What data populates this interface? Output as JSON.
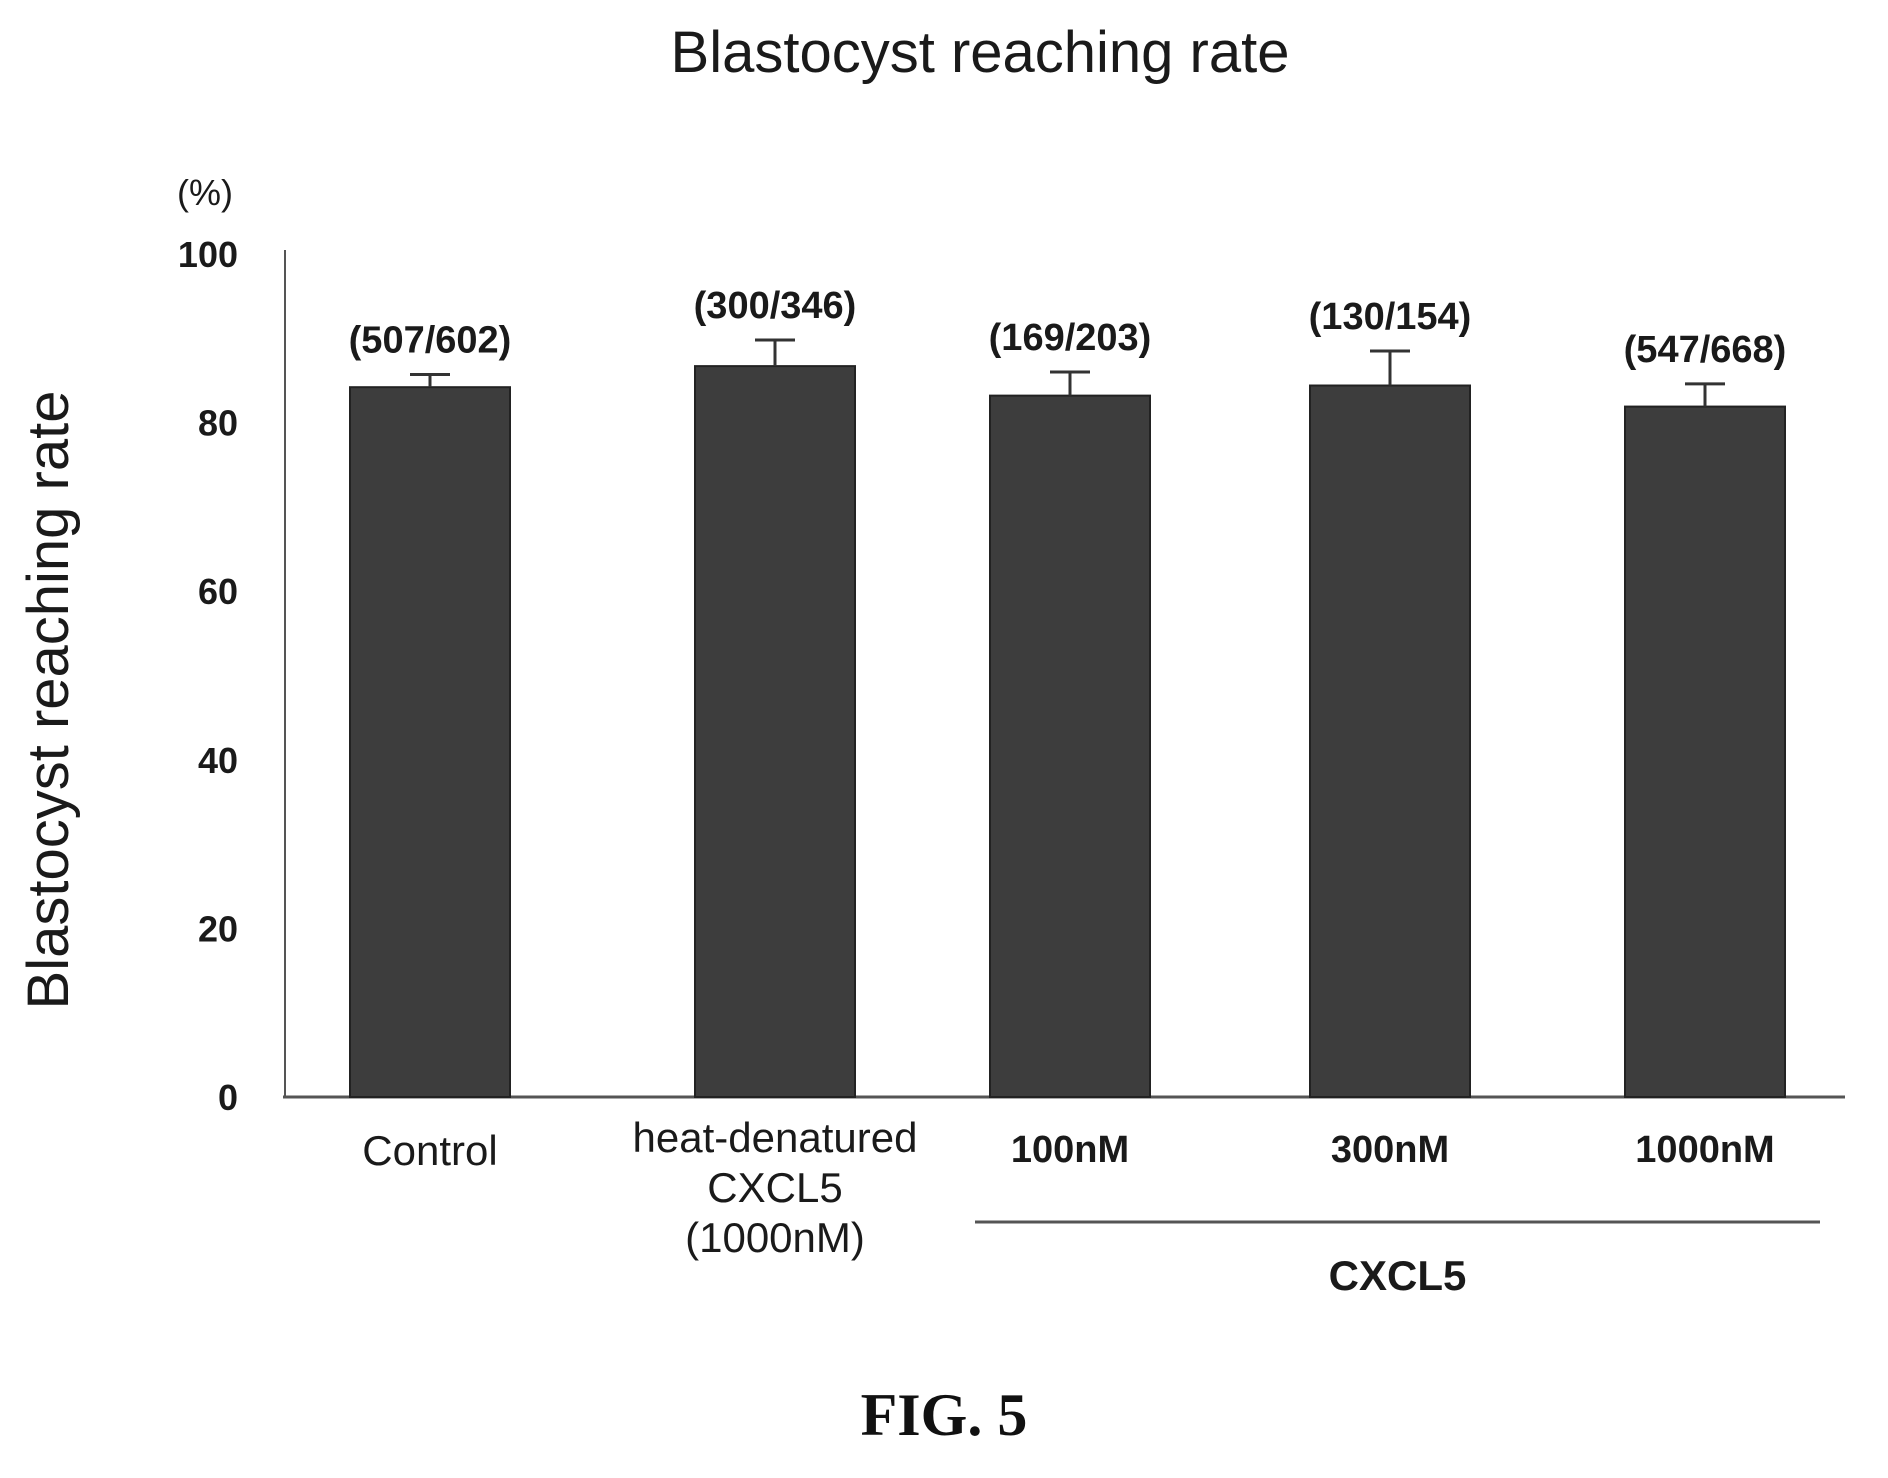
{
  "chart_data": {
    "type": "bar",
    "title": "Blastocyst reaching rate",
    "ylabel": "Blastocyst reaching rate",
    "y_unit": "(%)",
    "ylim": [
      0,
      100
    ],
    "y_ticks": [
      "0",
      "20",
      "40",
      "60",
      "80",
      "100"
    ],
    "grid": false,
    "categories": [
      {
        "lines": [
          "Control"
        ],
        "bold": false
      },
      {
        "lines": [
          "heat-denatured",
          "CXCL5",
          "(1000nM)"
        ],
        "bold": false
      },
      {
        "lines": [
          "100nM"
        ],
        "bold": true
      },
      {
        "lines": [
          "300nM"
        ],
        "bold": true
      },
      {
        "lines": [
          "1000nM"
        ],
        "bold": true
      }
    ],
    "values": [
      84.2,
      86.7,
      83.2,
      84.4,
      81.9
    ],
    "error_upper": [
      1.5,
      3.1,
      2.8,
      4.1,
      2.7
    ],
    "data_labels": [
      "(507/602)",
      "(300/346)",
      "(169/203)",
      "(130/154)",
      "(547/668)"
    ],
    "group_label": {
      "text": "CXCL5",
      "spans_categories": [
        2,
        4
      ]
    },
    "bar_color": "#3d3d3d"
  },
  "figure_label": "FIG. 5"
}
